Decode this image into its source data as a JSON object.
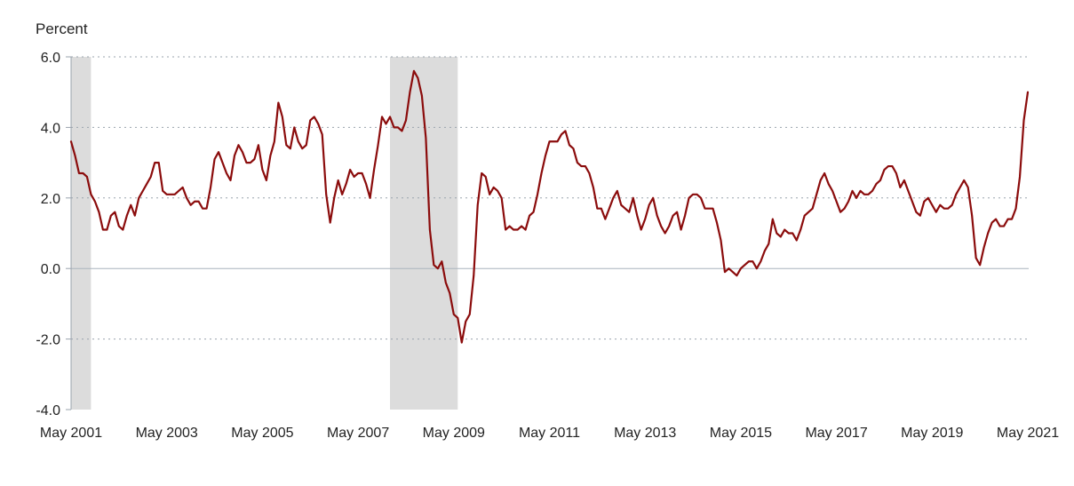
{
  "chart_data": {
    "type": "line",
    "title": "",
    "ylabel": "Percent",
    "xlabel": "",
    "ylim": [
      -4.0,
      6.0
    ],
    "y_ticks": [
      6.0,
      4.0,
      2.0,
      0.0,
      -2.0,
      -4.0
    ],
    "y_tick_labels": [
      "6.0",
      "4.0",
      "2.0",
      "0.0",
      "-2.0",
      "-4.0"
    ],
    "x_range": [
      "2001-05",
      "2021-05"
    ],
    "x_ticks": [
      "2001-05",
      "2003-05",
      "2005-05",
      "2007-05",
      "2009-05",
      "2011-05",
      "2013-05",
      "2015-05",
      "2017-05",
      "2019-05",
      "2021-05"
    ],
    "x_tick_labels": [
      "May 2001",
      "May 2003",
      "May 2005",
      "May 2007",
      "May 2009",
      "May 2011",
      "May 2013",
      "May 2015",
      "May 2017",
      "May 2019",
      "May 2021"
    ],
    "grid": "horizontal dotted",
    "recession_bands": [
      {
        "start": "2001-04",
        "end": "2001-10"
      },
      {
        "start": "2008-01",
        "end": "2009-06"
      }
    ],
    "series": [
      {
        "color": "#8b0c0c",
        "points": [
          [
            "2001-05",
            3.6
          ],
          [
            "2001-06",
            3.2
          ],
          [
            "2001-07",
            2.7
          ],
          [
            "2001-08",
            2.7
          ],
          [
            "2001-09",
            2.6
          ],
          [
            "2001-10",
            2.1
          ],
          [
            "2001-11",
            1.9
          ],
          [
            "2001-12",
            1.6
          ],
          [
            "2002-01",
            1.1
          ],
          [
            "2002-02",
            1.1
          ],
          [
            "2002-03",
            1.5
          ],
          [
            "2002-04",
            1.6
          ],
          [
            "2002-05",
            1.2
          ],
          [
            "2002-06",
            1.1
          ],
          [
            "2002-07",
            1.5
          ],
          [
            "2002-08",
            1.8
          ],
          [
            "2002-09",
            1.5
          ],
          [
            "2002-10",
            2.0
          ],
          [
            "2002-11",
            2.2
          ],
          [
            "2002-12",
            2.4
          ],
          [
            "2003-01",
            2.6
          ],
          [
            "2003-02",
            3.0
          ],
          [
            "2003-03",
            3.0
          ],
          [
            "2003-04",
            2.2
          ],
          [
            "2003-05",
            2.1
          ],
          [
            "2003-06",
            2.1
          ],
          [
            "2003-07",
            2.1
          ],
          [
            "2003-08",
            2.2
          ],
          [
            "2003-09",
            2.3
          ],
          [
            "2003-10",
            2.0
          ],
          [
            "2003-11",
            1.8
          ],
          [
            "2003-12",
            1.9
          ],
          [
            "2004-01",
            1.9
          ],
          [
            "2004-02",
            1.7
          ],
          [
            "2004-03",
            1.7
          ],
          [
            "2004-04",
            2.3
          ],
          [
            "2004-05",
            3.1
          ],
          [
            "2004-06",
            3.3
          ],
          [
            "2004-07",
            3.0
          ],
          [
            "2004-08",
            2.7
          ],
          [
            "2004-09",
            2.5
          ],
          [
            "2004-10",
            3.2
          ],
          [
            "2004-11",
            3.5
          ],
          [
            "2004-12",
            3.3
          ],
          [
            "2005-01",
            3.0
          ],
          [
            "2005-02",
            3.0
          ],
          [
            "2005-03",
            3.1
          ],
          [
            "2005-04",
            3.5
          ],
          [
            "2005-05",
            2.8
          ],
          [
            "2005-06",
            2.5
          ],
          [
            "2005-07",
            3.2
          ],
          [
            "2005-08",
            3.6
          ],
          [
            "2005-09",
            4.7
          ],
          [
            "2005-10",
            4.3
          ],
          [
            "2005-11",
            3.5
          ],
          [
            "2005-12",
            3.4
          ],
          [
            "2006-01",
            4.0
          ],
          [
            "2006-02",
            3.6
          ],
          [
            "2006-03",
            3.4
          ],
          [
            "2006-04",
            3.5
          ],
          [
            "2006-05",
            4.2
          ],
          [
            "2006-06",
            4.3
          ],
          [
            "2006-07",
            4.1
          ],
          [
            "2006-08",
            3.8
          ],
          [
            "2006-09",
            2.1
          ],
          [
            "2006-10",
            1.3
          ],
          [
            "2006-11",
            2.0
          ],
          [
            "2006-12",
            2.5
          ],
          [
            "2007-01",
            2.1
          ],
          [
            "2007-02",
            2.4
          ],
          [
            "2007-03",
            2.8
          ],
          [
            "2007-04",
            2.6
          ],
          [
            "2007-05",
            2.7
          ],
          [
            "2007-06",
            2.7
          ],
          [
            "2007-07",
            2.4
          ],
          [
            "2007-08",
            2.0
          ],
          [
            "2007-09",
            2.8
          ],
          [
            "2007-10",
            3.5
          ],
          [
            "2007-11",
            4.3
          ],
          [
            "2007-12",
            4.1
          ],
          [
            "2008-01",
            4.3
          ],
          [
            "2008-02",
            4.0
          ],
          [
            "2008-03",
            4.0
          ],
          [
            "2008-04",
            3.9
          ],
          [
            "2008-05",
            4.2
          ],
          [
            "2008-06",
            5.0
          ],
          [
            "2008-07",
            5.6
          ],
          [
            "2008-08",
            5.4
          ],
          [
            "2008-09",
            4.9
          ],
          [
            "2008-10",
            3.7
          ],
          [
            "2008-11",
            1.1
          ],
          [
            "2008-12",
            0.1
          ],
          [
            "2009-01",
            0.0
          ],
          [
            "2009-02",
            0.2
          ],
          [
            "2009-03",
            -0.4
          ],
          [
            "2009-04",
            -0.7
          ],
          [
            "2009-05",
            -1.3
          ],
          [
            "2009-06",
            -1.4
          ],
          [
            "2009-07",
            -2.1
          ],
          [
            "2009-08",
            -1.5
          ],
          [
            "2009-09",
            -1.3
          ],
          [
            "2009-10",
            -0.2
          ],
          [
            "2009-11",
            1.8
          ],
          [
            "2009-12",
            2.7
          ],
          [
            "2010-01",
            2.6
          ],
          [
            "2010-02",
            2.1
          ],
          [
            "2010-03",
            2.3
          ],
          [
            "2010-04",
            2.2
          ],
          [
            "2010-05",
            2.0
          ],
          [
            "2010-06",
            1.1
          ],
          [
            "2010-07",
            1.2
          ],
          [
            "2010-08",
            1.1
          ],
          [
            "2010-09",
            1.1
          ],
          [
            "2010-10",
            1.2
          ],
          [
            "2010-11",
            1.1
          ],
          [
            "2010-12",
            1.5
          ],
          [
            "2011-01",
            1.6
          ],
          [
            "2011-02",
            2.1
          ],
          [
            "2011-03",
            2.7
          ],
          [
            "2011-04",
            3.2
          ],
          [
            "2011-05",
            3.6
          ],
          [
            "2011-06",
            3.6
          ],
          [
            "2011-07",
            3.6
          ],
          [
            "2011-08",
            3.8
          ],
          [
            "2011-09",
            3.9
          ],
          [
            "2011-10",
            3.5
          ],
          [
            "2011-11",
            3.4
          ],
          [
            "2011-12",
            3.0
          ],
          [
            "2012-01",
            2.9
          ],
          [
            "2012-02",
            2.9
          ],
          [
            "2012-03",
            2.7
          ],
          [
            "2012-04",
            2.3
          ],
          [
            "2012-05",
            1.7
          ],
          [
            "2012-06",
            1.7
          ],
          [
            "2012-07",
            1.4
          ],
          [
            "2012-08",
            1.7
          ],
          [
            "2012-09",
            2.0
          ],
          [
            "2012-10",
            2.2
          ],
          [
            "2012-11",
            1.8
          ],
          [
            "2012-12",
            1.7
          ],
          [
            "2013-01",
            1.6
          ],
          [
            "2013-02",
            2.0
          ],
          [
            "2013-03",
            1.5
          ],
          [
            "2013-04",
            1.1
          ],
          [
            "2013-05",
            1.4
          ],
          [
            "2013-06",
            1.8
          ],
          [
            "2013-07",
            2.0
          ],
          [
            "2013-08",
            1.5
          ],
          [
            "2013-09",
            1.2
          ],
          [
            "2013-10",
            1.0
          ],
          [
            "2013-11",
            1.2
          ],
          [
            "2013-12",
            1.5
          ],
          [
            "2014-01",
            1.6
          ],
          [
            "2014-02",
            1.1
          ],
          [
            "2014-03",
            1.5
          ],
          [
            "2014-04",
            2.0
          ],
          [
            "2014-05",
            2.1
          ],
          [
            "2014-06",
            2.1
          ],
          [
            "2014-07",
            2.0
          ],
          [
            "2014-08",
            1.7
          ],
          [
            "2014-09",
            1.7
          ],
          [
            "2014-10",
            1.7
          ],
          [
            "2014-11",
            1.3
          ],
          [
            "2014-12",
            0.8
          ],
          [
            "2015-01",
            -0.1
          ],
          [
            "2015-02",
            0.0
          ],
          [
            "2015-03",
            -0.1
          ],
          [
            "2015-04",
            -0.2
          ],
          [
            "2015-05",
            0.0
          ],
          [
            "2015-06",
            0.1
          ],
          [
            "2015-07",
            0.2
          ],
          [
            "2015-08",
            0.2
          ],
          [
            "2015-09",
            0.0
          ],
          [
            "2015-10",
            0.2
          ],
          [
            "2015-11",
            0.5
          ],
          [
            "2015-12",
            0.7
          ],
          [
            "2016-01",
            1.4
          ],
          [
            "2016-02",
            1.0
          ],
          [
            "2016-03",
            0.9
          ],
          [
            "2016-04",
            1.1
          ],
          [
            "2016-05",
            1.0
          ],
          [
            "2016-06",
            1.0
          ],
          [
            "2016-07",
            0.8
          ],
          [
            "2016-08",
            1.1
          ],
          [
            "2016-09",
            1.5
          ],
          [
            "2016-10",
            1.6
          ],
          [
            "2016-11",
            1.7
          ],
          [
            "2016-12",
            2.1
          ],
          [
            "2017-01",
            2.5
          ],
          [
            "2017-02",
            2.7
          ],
          [
            "2017-03",
            2.4
          ],
          [
            "2017-04",
            2.2
          ],
          [
            "2017-05",
            1.9
          ],
          [
            "2017-06",
            1.6
          ],
          [
            "2017-07",
            1.7
          ],
          [
            "2017-08",
            1.9
          ],
          [
            "2017-09",
            2.2
          ],
          [
            "2017-10",
            2.0
          ],
          [
            "2017-11",
            2.2
          ],
          [
            "2017-12",
            2.1
          ],
          [
            "2018-01",
            2.1
          ],
          [
            "2018-02",
            2.2
          ],
          [
            "2018-03",
            2.4
          ],
          [
            "2018-04",
            2.5
          ],
          [
            "2018-05",
            2.8
          ],
          [
            "2018-06",
            2.9
          ],
          [
            "2018-07",
            2.9
          ],
          [
            "2018-08",
            2.7
          ],
          [
            "2018-09",
            2.3
          ],
          [
            "2018-10",
            2.5
          ],
          [
            "2018-11",
            2.2
          ],
          [
            "2018-12",
            1.9
          ],
          [
            "2019-01",
            1.6
          ],
          [
            "2019-02",
            1.5
          ],
          [
            "2019-03",
            1.9
          ],
          [
            "2019-04",
            2.0
          ],
          [
            "2019-05",
            1.8
          ],
          [
            "2019-06",
            1.6
          ],
          [
            "2019-07",
            1.8
          ],
          [
            "2019-08",
            1.7
          ],
          [
            "2019-09",
            1.7
          ],
          [
            "2019-10",
            1.8
          ],
          [
            "2019-11",
            2.1
          ],
          [
            "2019-12",
            2.3
          ],
          [
            "2020-01",
            2.5
          ],
          [
            "2020-02",
            2.3
          ],
          [
            "2020-03",
            1.5
          ],
          [
            "2020-04",
            0.3
          ],
          [
            "2020-05",
            0.1
          ],
          [
            "2020-06",
            0.6
          ],
          [
            "2020-07",
            1.0
          ],
          [
            "2020-08",
            1.3
          ],
          [
            "2020-09",
            1.4
          ],
          [
            "2020-10",
            1.2
          ],
          [
            "2020-11",
            1.2
          ],
          [
            "2020-12",
            1.4
          ],
          [
            "2021-01",
            1.4
          ],
          [
            "2021-02",
            1.7
          ],
          [
            "2021-03",
            2.6
          ],
          [
            "2021-04",
            4.2
          ],
          [
            "2021-05",
            5.0
          ]
        ]
      }
    ]
  }
}
